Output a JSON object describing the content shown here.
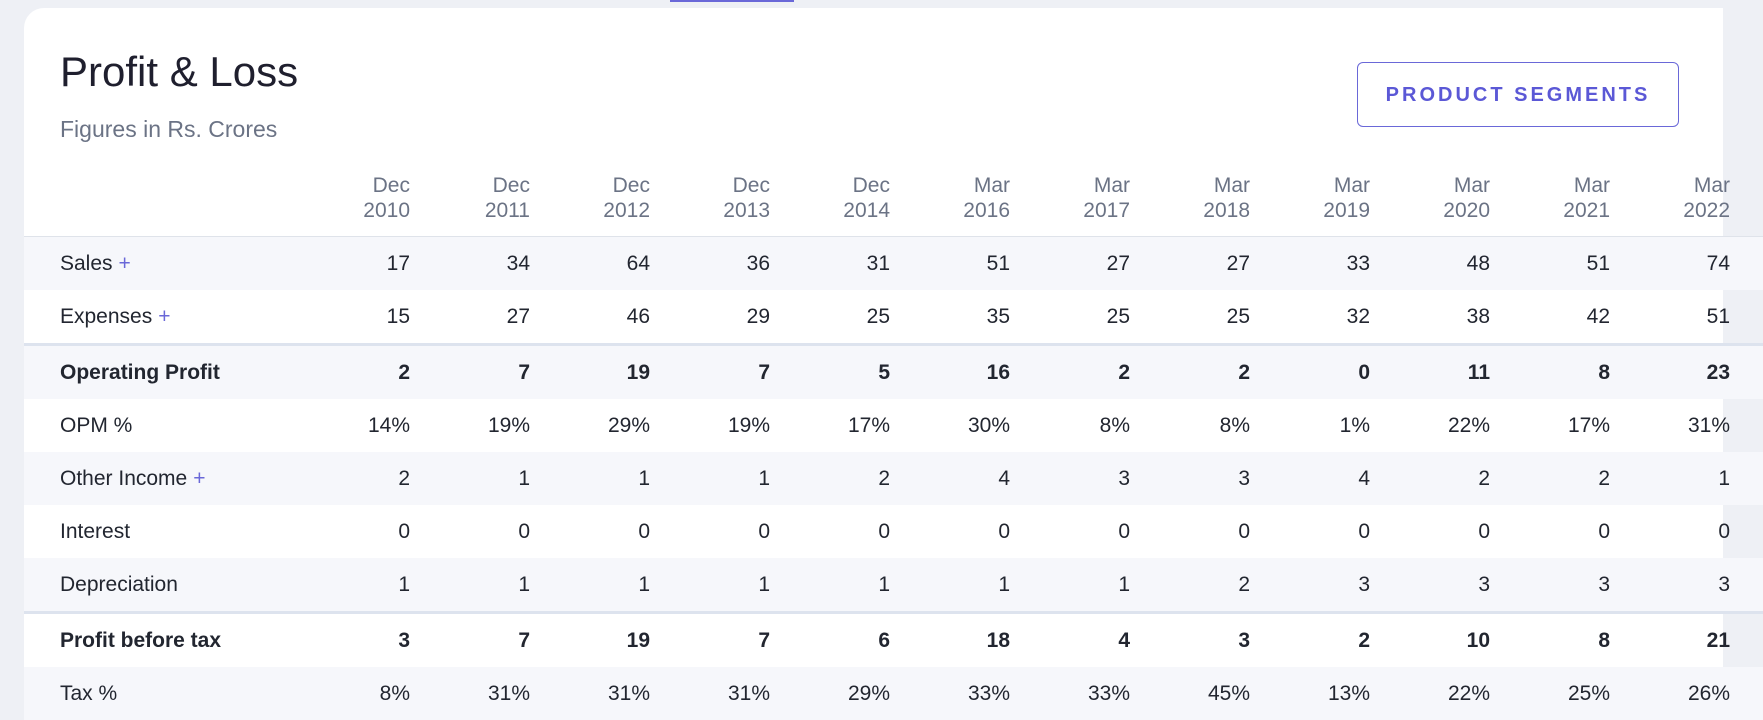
{
  "section": {
    "title": "Profit & Loss",
    "subtitle": "Figures in Rs. Crores",
    "segments_button": "PRODUCT SEGMENTS"
  },
  "periods": [
    {
      "month": "Dec",
      "year": "2010"
    },
    {
      "month": "Dec",
      "year": "2011"
    },
    {
      "month": "Dec",
      "year": "2012"
    },
    {
      "month": "Dec",
      "year": "2013"
    },
    {
      "month": "Dec",
      "year": "2014"
    },
    {
      "month": "Mar",
      "year": "2016"
    },
    {
      "month": "Mar",
      "year": "2017"
    },
    {
      "month": "Mar",
      "year": "2018"
    },
    {
      "month": "Mar",
      "year": "2019"
    },
    {
      "month": "Mar",
      "year": "2020"
    },
    {
      "month": "Mar",
      "year": "2021"
    },
    {
      "month": "Mar",
      "year": "2022"
    }
  ],
  "rows": [
    {
      "label": "Sales",
      "expandable": "+",
      "style": "alt",
      "values": [
        "17",
        "34",
        "64",
        "36",
        "31",
        "51",
        "27",
        "27",
        "33",
        "48",
        "51",
        "74"
      ]
    },
    {
      "label": "Expenses",
      "expandable": "+",
      "style": "plain",
      "values": [
        "15",
        "27",
        "46",
        "29",
        "25",
        "35",
        "25",
        "25",
        "32",
        "38",
        "42",
        "51"
      ]
    },
    {
      "label": "Operating Profit",
      "expandable": "",
      "style": "strong-sep-alt",
      "values": [
        "2",
        "7",
        "19",
        "7",
        "5",
        "16",
        "2",
        "2",
        "0",
        "11",
        "8",
        "23"
      ]
    },
    {
      "label": "OPM %",
      "expandable": "",
      "style": "plain",
      "values": [
        "14%",
        "19%",
        "29%",
        "19%",
        "17%",
        "30%",
        "8%",
        "8%",
        "1%",
        "22%",
        "17%",
        "31%"
      ]
    },
    {
      "label": "Other Income",
      "expandable": "+",
      "style": "alt",
      "values": [
        "2",
        "1",
        "1",
        "1",
        "2",
        "4",
        "3",
        "3",
        "4",
        "2",
        "2",
        "1"
      ]
    },
    {
      "label": "Interest",
      "expandable": "",
      "style": "plain",
      "values": [
        "0",
        "0",
        "0",
        "0",
        "0",
        "0",
        "0",
        "0",
        "0",
        "0",
        "0",
        "0"
      ]
    },
    {
      "label": "Depreciation",
      "expandable": "",
      "style": "alt",
      "values": [
        "1",
        "1",
        "1",
        "1",
        "1",
        "1",
        "1",
        "2",
        "3",
        "3",
        "3",
        "3"
      ]
    },
    {
      "label": "Profit before tax",
      "expandable": "",
      "style": "strong-sep",
      "values": [
        "3",
        "7",
        "19",
        "7",
        "6",
        "18",
        "4",
        "3",
        "2",
        "10",
        "8",
        "21"
      ]
    },
    {
      "label": "Tax %",
      "expandable": "",
      "style": "alt",
      "values": [
        "8%",
        "31%",
        "31%",
        "31%",
        "29%",
        "33%",
        "33%",
        "45%",
        "13%",
        "22%",
        "25%",
        "26%"
      ]
    }
  ],
  "colors": {
    "accent": "#6a68d8",
    "alt_row": "#f6f7fb",
    "muted_text": "#6b7385"
  }
}
